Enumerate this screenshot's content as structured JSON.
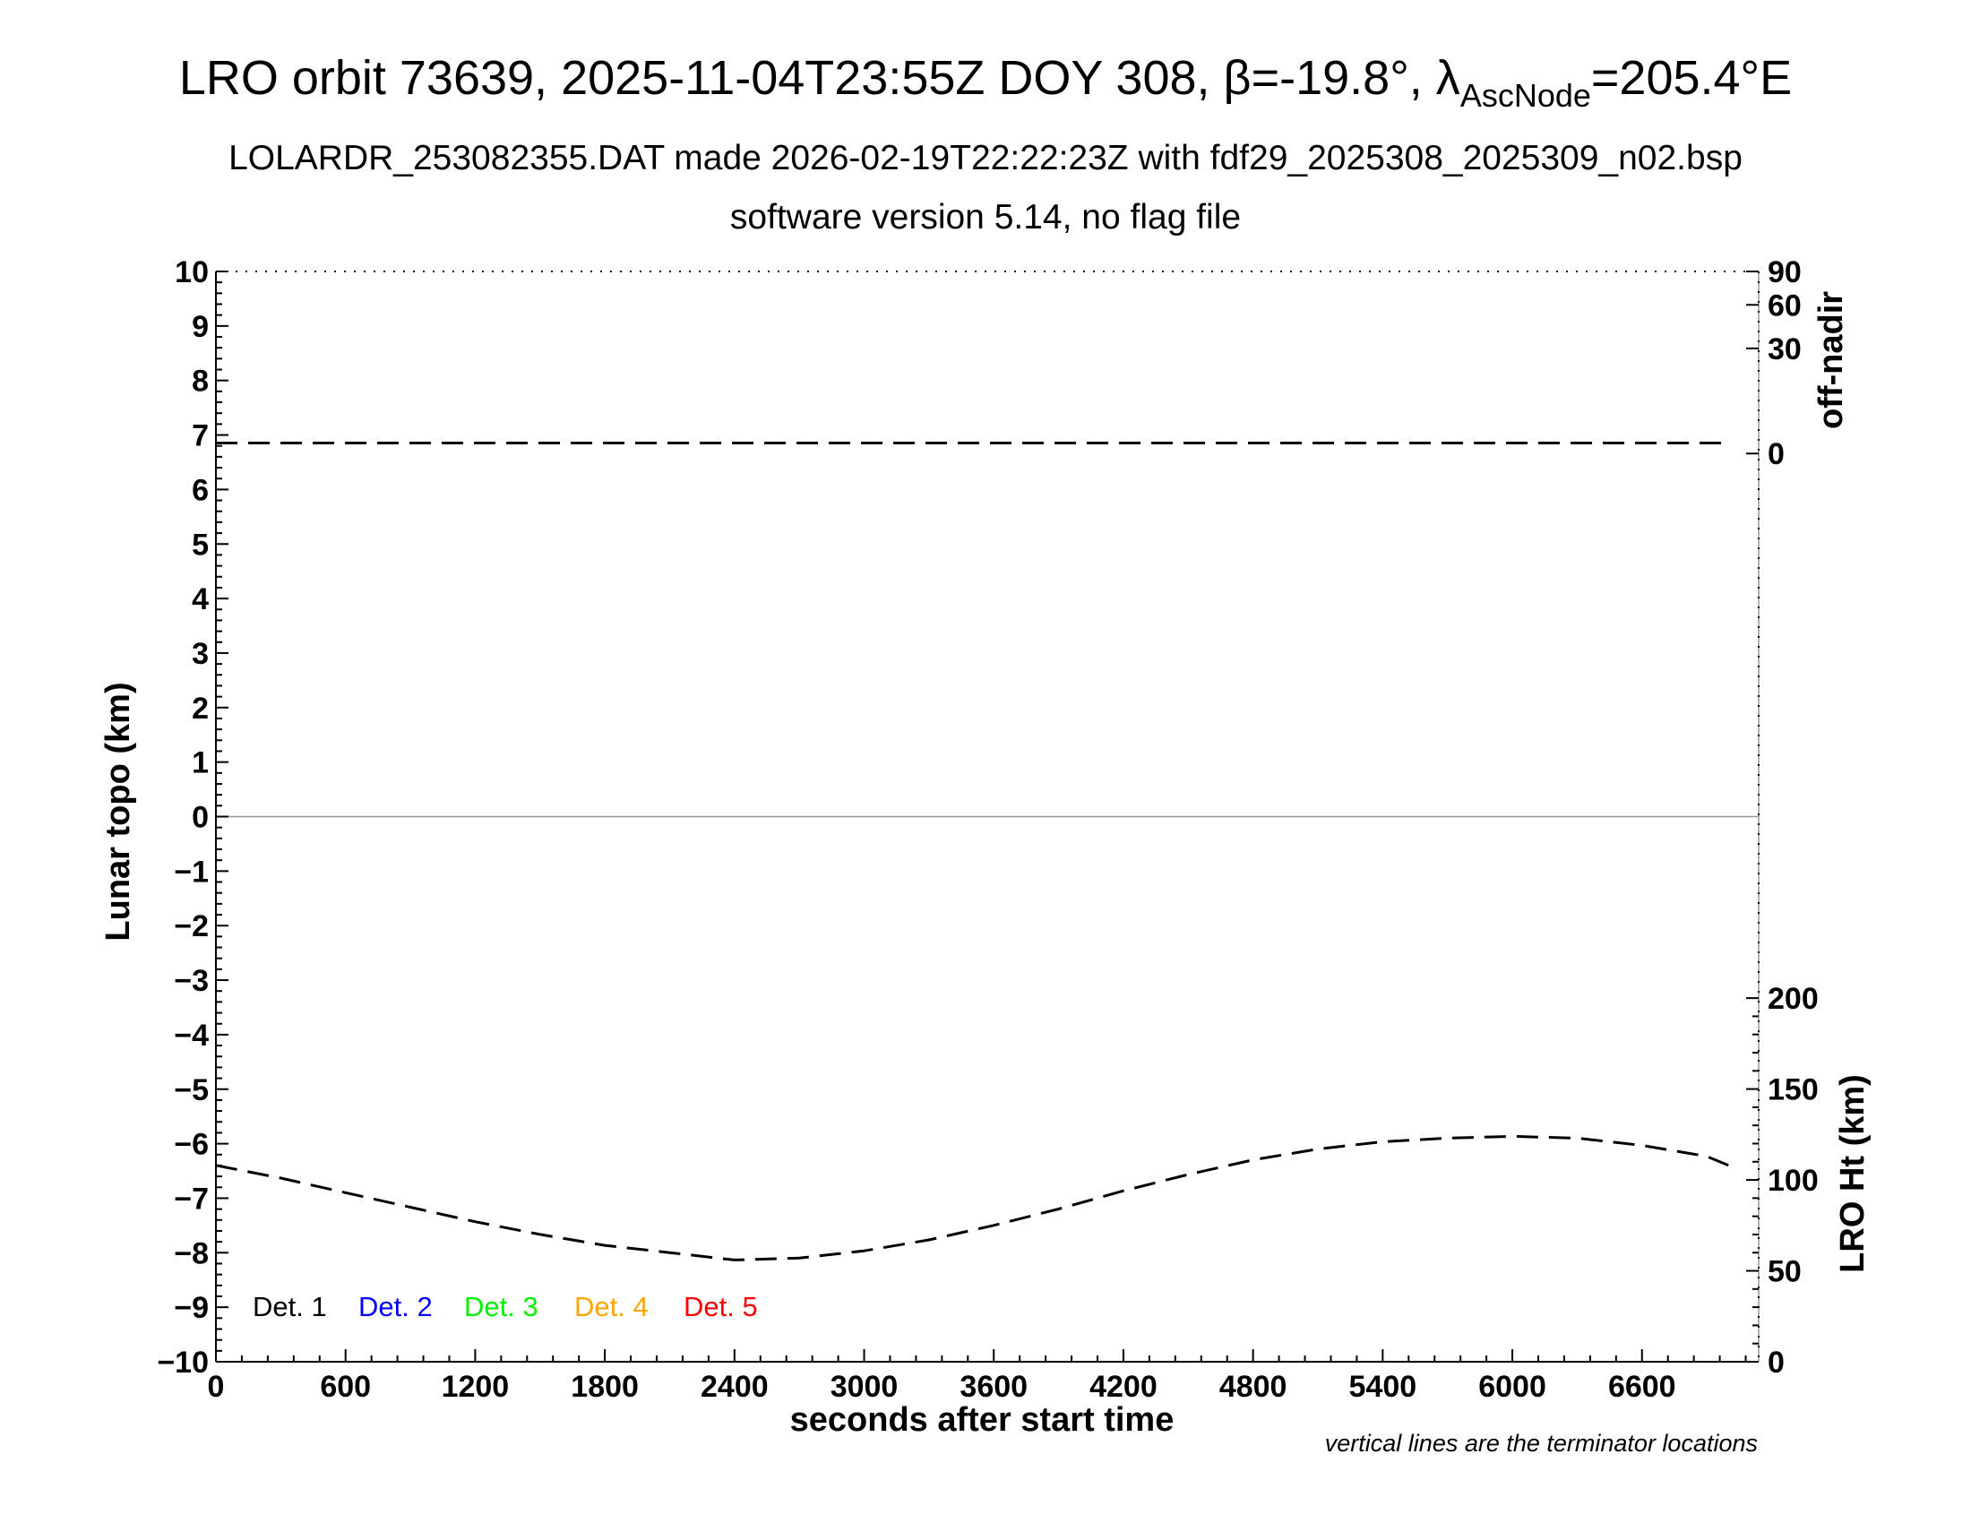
{
  "header": {
    "title_main": "LRO orbit 73639, 2025-11-04T23:55Z DOY 308, β=-19.8°, λ",
    "title_sub": "AscNode",
    "title_end": "=205.4°E",
    "subtitle1": "LOLARDR_253082355.DAT made 2026-02-19T22:22:23Z with fdf29_2025308_2025309_n02.bsp",
    "subtitle2": "software version 5.14, no flag file"
  },
  "note": "vertical lines are the terminator locations",
  "chart_data": {
    "type": "line",
    "xlabel": "seconds after start time",
    "ylabel": "Lunar topo (km)",
    "y2label_top": "off-nadir",
    "y2label_bottom": "LRO Ht (km)",
    "xlim": [
      0,
      7140
    ],
    "ylim": [
      -10,
      10
    ],
    "x_ticks": [
      0,
      600,
      1200,
      1800,
      2400,
      3000,
      3600,
      4200,
      4800,
      5400,
      6000,
      6600
    ],
    "y_ticks": [
      10,
      9,
      8,
      7,
      6,
      5,
      4,
      3,
      2,
      1,
      0,
      -1,
      -2,
      -3,
      -4,
      -5,
      -6,
      -7,
      -8,
      -9,
      -10
    ],
    "y_tick_labels": [
      "10",
      "9",
      "8",
      "7",
      "6",
      "5",
      "4",
      "3",
      "2",
      "1",
      "0",
      "−1",
      "−2",
      "−3",
      "−4",
      "−5",
      "−6",
      "−7",
      "−8",
      "−9",
      "−10"
    ],
    "offnadir_ticks": [
      90,
      60,
      30,
      0
    ],
    "height_ticks": [
      200,
      150,
      100,
      50,
      0
    ],
    "height_range": [
      0,
      200
    ],
    "grid": false,
    "legend": {
      "placement": "bottom-left",
      "entries": [
        {
          "label": "Det. 1",
          "color": "#000000"
        },
        {
          "label": "Det. 2",
          "color": "#0000ff"
        },
        {
          "label": "Det. 3",
          "color": "#00ee00"
        },
        {
          "label": "Det. 4",
          "color": "#ffa500"
        },
        {
          "label": "Det. 5",
          "color": "#ff0000"
        }
      ]
    },
    "series": [
      {
        "axis": "off-nadir",
        "style": "dashed",
        "color": "#000000",
        "x": [
          0,
          7000
        ],
        "values": [
          0.3,
          0.3
        ]
      },
      {
        "axis": "LRO Ht (km)",
        "style": "dashed",
        "color": "#000000",
        "x": [
          0,
          300,
          600,
          900,
          1200,
          1500,
          1800,
          2100,
          2400,
          2700,
          3000,
          3300,
          3600,
          3900,
          4200,
          4500,
          4800,
          5100,
          5400,
          5700,
          6000,
          6300,
          6600,
          6900,
          7000
        ],
        "values": [
          108,
          101,
          93,
          85,
          77,
          70,
          64,
          60,
          56,
          57,
          61,
          67,
          75,
          84,
          94,
          103,
          111,
          117,
          121,
          123,
          124,
          123,
          119,
          113,
          108
        ]
      }
    ]
  }
}
